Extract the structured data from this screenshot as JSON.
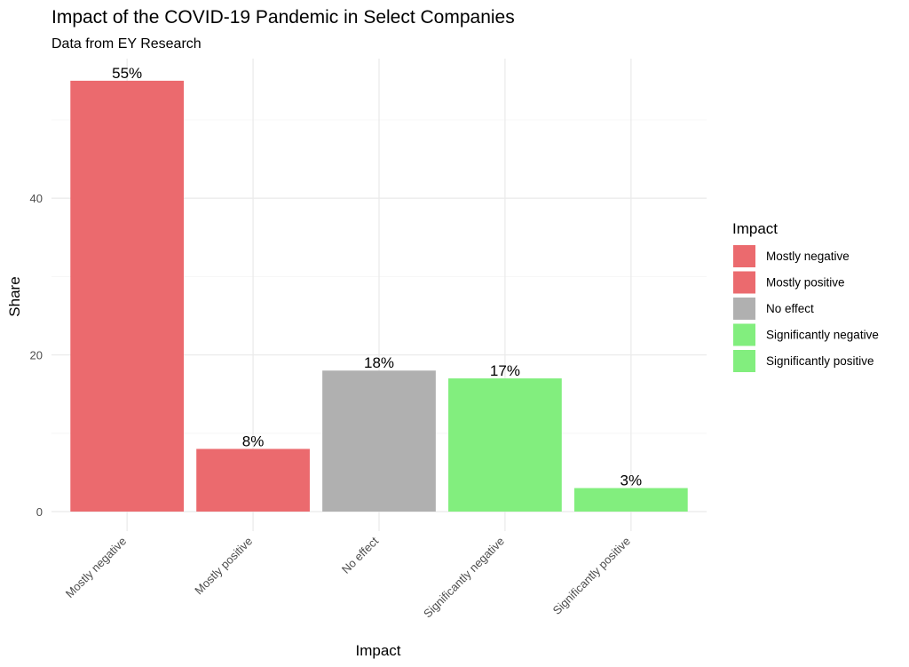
{
  "chart_data": {
    "type": "bar",
    "title": "Impact of the COVID-19 Pandemic in Select Companies",
    "subtitle": "Data from EY Research",
    "xlabel": "Impact",
    "ylabel": "Share",
    "categories": [
      "Mostly negative",
      "Mostly positive",
      "No effect",
      "Significantly negative",
      "Significantly positive"
    ],
    "values": [
      55,
      8,
      18,
      17,
      3
    ],
    "data_labels": [
      "55%",
      "8%",
      "18%",
      "17%",
      "3%"
    ],
    "bar_colors": [
      "#eb6a6e",
      "#eb6a6e",
      "#b0b0b0",
      "#82ee7e",
      "#82ee7e"
    ],
    "ylim": [
      0,
      57.75
    ],
    "y_ticks": [
      0,
      20,
      40
    ],
    "y_tick_labels": [
      "0",
      "20",
      "40"
    ],
    "y_minor_ticks": [
      10,
      30,
      50
    ],
    "grid": true,
    "x_tick_rotation": 45,
    "legend": {
      "title": "Impact",
      "position": "right",
      "entries": [
        {
          "label": "Mostly negative",
          "color": "#eb6a6e"
        },
        {
          "label": "Mostly positive",
          "color": "#eb6a6e"
        },
        {
          "label": "No effect",
          "color": "#b0b0b0"
        },
        {
          "label": "Significantly negative",
          "color": "#82ee7e"
        },
        {
          "label": "Significantly positive",
          "color": "#82ee7e"
        }
      ]
    }
  }
}
